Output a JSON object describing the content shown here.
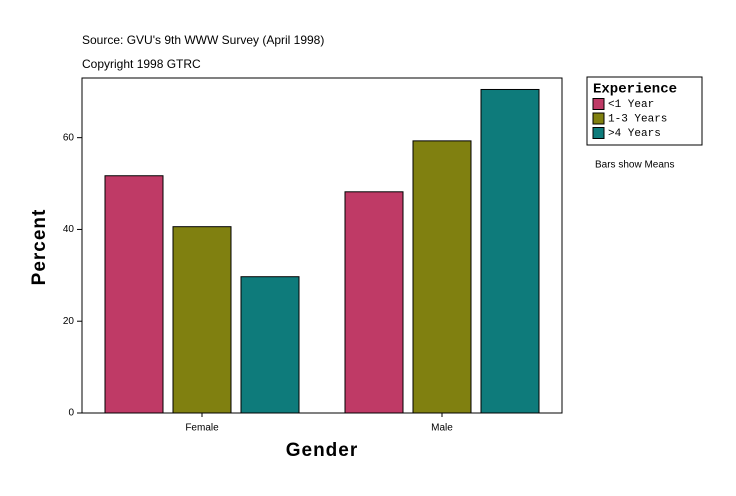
{
  "chart_data": {
    "type": "bar",
    "source": "Source: GVU's 9th WWW Survey (April 1998)",
    "copyright": "Copyright 1998 GTRC",
    "note": "Bars show Means",
    "x_label": "Gender",
    "y_label": "Percent",
    "legend_title": "Experience",
    "categories": [
      "Female",
      "Male"
    ],
    "series": [
      {
        "name": "<1 Year",
        "color": "#bf3a66",
        "values": [
          51.7,
          48.2
        ]
      },
      {
        "name": "1-3 Years",
        "color": "#808010",
        "values": [
          40.6,
          59.3
        ]
      },
      {
        "name": ">4 Years",
        "color": "#0e7b7b",
        "values": [
          29.7,
          70.5
        ]
      }
    ],
    "ylim": [
      0,
      73
    ],
    "yticks": [
      0,
      20,
      40,
      60
    ],
    "grid": false,
    "legend": "right"
  }
}
